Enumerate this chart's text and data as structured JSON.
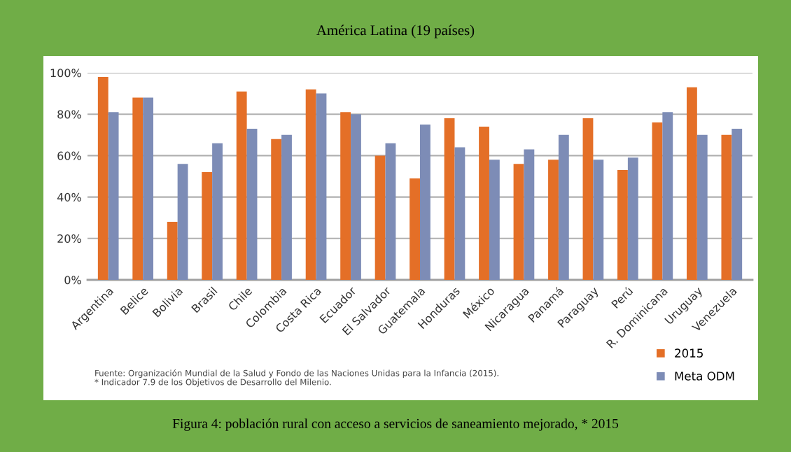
{
  "chart_data": {
    "type": "bar",
    "title": "América Latina (19 países)",
    "categories": [
      "Argentina",
      "Belice",
      "Bolivia",
      "Brasil",
      "Chile",
      "Colombia",
      "Costa Rica",
      "Ecuador",
      "El Salvador",
      "Guatemala",
      "Honduras",
      "México",
      "Nicaragua",
      "Panamá",
      "Paraguay",
      "Perú",
      "R. Dominicana",
      "Uruguay",
      "Venezuela"
    ],
    "series": [
      {
        "name": "2015",
        "color": "#e46f27",
        "values": [
          98,
          88,
          28,
          52,
          91,
          68,
          92,
          81,
          60,
          49,
          78,
          74,
          56,
          58,
          78,
          53,
          76,
          93,
          70
        ]
      },
      {
        "name": "Meta ODM",
        "color": "#7d8cb6",
        "values": [
          81,
          88,
          56,
          66,
          73,
          70,
          90,
          80,
          66,
          75,
          64,
          58,
          63,
          70,
          58,
          59,
          81,
          70,
          73
        ]
      }
    ],
    "ylim": [
      0,
      100
    ],
    "yticks": [
      {
        "value": 0,
        "label": "0%"
      },
      {
        "value": 20,
        "label": "20%"
      },
      {
        "value": 40,
        "label": "40%"
      },
      {
        "value": 60,
        "label": "60%"
      },
      {
        "value": 80,
        "label": "80%"
      },
      {
        "value": 100,
        "label": "100%"
      }
    ],
    "grid": "y",
    "legend": "bottom right",
    "annotations": [
      "Fuente: Organización Mundial de la Salud y Fondo de las Naciones Unidas para la Infancia (2015).",
      "* Indicador 7.9 de los Objetivos de Desarrollo del Milenio.",
      "Figura 4: población rural con acceso a servicios de saneamiento mejorado, * 2015"
    ]
  }
}
